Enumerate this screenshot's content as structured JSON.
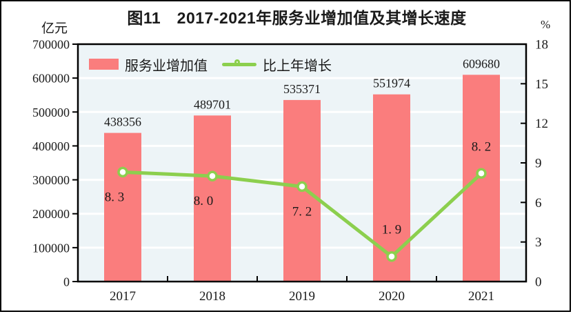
{
  "page": {
    "title": "图11　2017-2021年服务业增加值及其增长速度",
    "left_unit": "亿元",
    "right_unit": "%"
  },
  "legend": {
    "bar_label": "服务业增加值",
    "line_label": "比上年增长"
  },
  "colors": {
    "bar": "#fa7d7d",
    "line": "#8ccf4e",
    "plot_bg": "#edf4f7",
    "gridline": "#ffffff",
    "axis": "#000000",
    "text": "#1a1a1a"
  },
  "chart_data": {
    "type": "bar",
    "subtype": "bar+line combo, dual axis",
    "title": "图11　2017-2021年服务业增加值及其增长速度",
    "categories": [
      "2017",
      "2018",
      "2019",
      "2020",
      "2021"
    ],
    "series": [
      {
        "name": "服务业增加值",
        "type": "bar",
        "axis": "left",
        "unit": "亿元",
        "color": "#fa7d7d",
        "values": [
          438356,
          489701,
          535371,
          551974,
          609680
        ],
        "labels": [
          "438356",
          "489701",
          "535371",
          "551974",
          "609680"
        ]
      },
      {
        "name": "比上年增长",
        "type": "line",
        "axis": "right",
        "unit": "%",
        "color": "#8ccf4e",
        "marker": "circle-white-fill",
        "values": [
          8.3,
          8.0,
          7.2,
          1.9,
          8.2
        ],
        "labels": [
          "8. 3",
          "8. 0",
          "7. 2",
          "1. 9",
          "8. 2"
        ],
        "label_side": [
          "below",
          "below",
          "below",
          "above",
          "above"
        ]
      }
    ],
    "left_axis": {
      "label": "亿元",
      "min": 0,
      "max": 700000,
      "ticks": [
        0,
        100000,
        200000,
        300000,
        400000,
        500000,
        600000,
        700000
      ]
    },
    "right_axis": {
      "label": "%",
      "min": 0,
      "max": 18,
      "ticks": [
        0,
        3,
        6,
        9,
        12,
        15,
        18
      ]
    },
    "grid": true,
    "gridlines_follow": "left_axis",
    "legend_position": "top-left-inside"
  }
}
